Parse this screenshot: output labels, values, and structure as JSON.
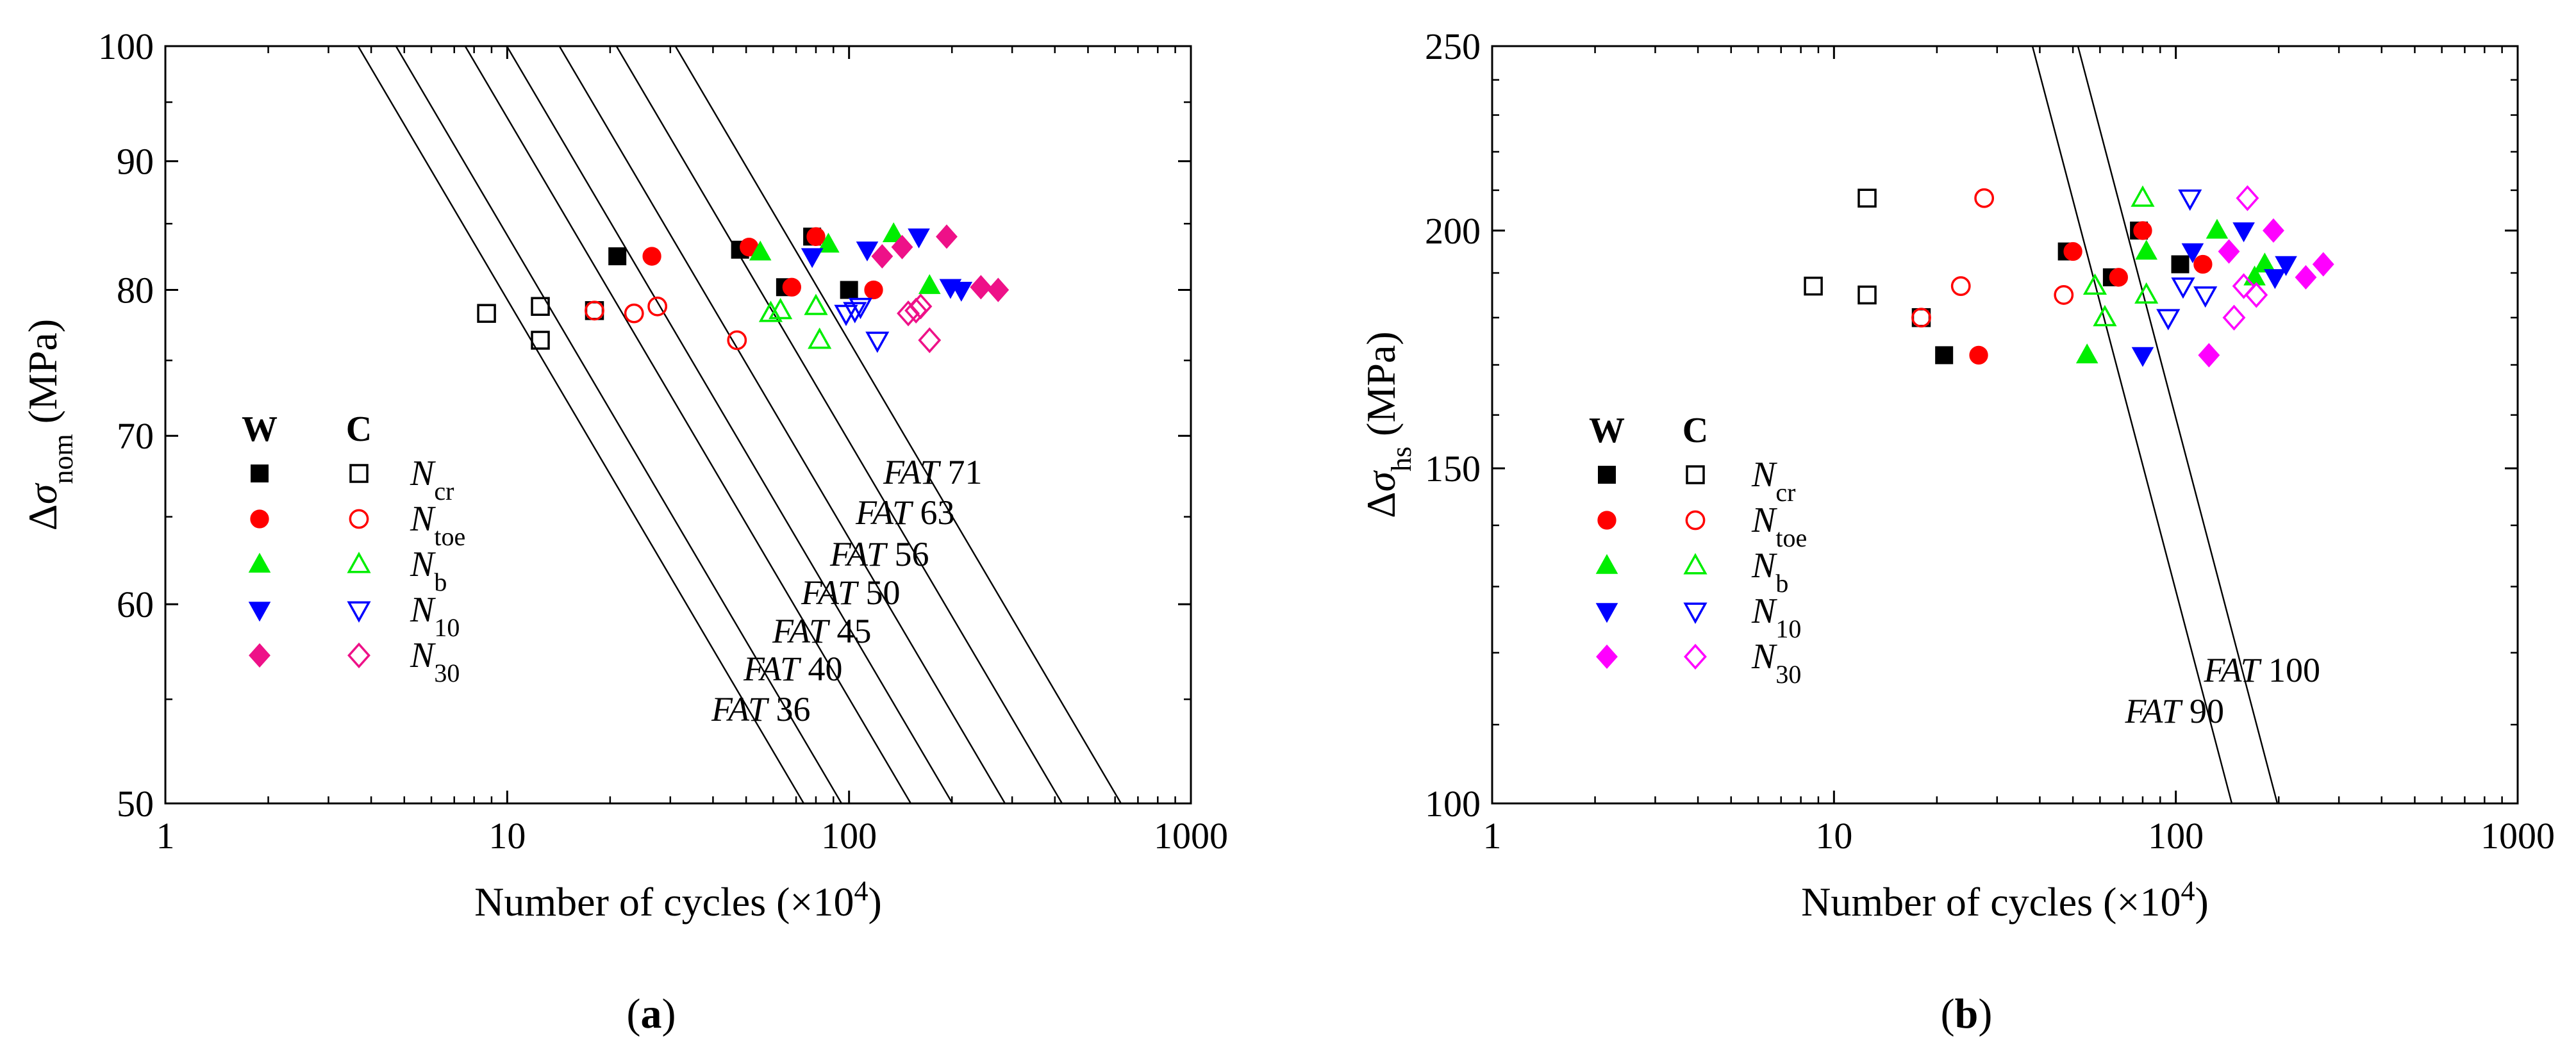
{
  "chart_data": [
    {
      "type": "scatter",
      "panel_label": "a",
      "title": "",
      "xlabel": "Number of cycles (×10",
      "xlabel_sup": "4",
      "xlabel_end": ")",
      "ylabel_prefix": "Δσ",
      "ylabel_sub": "nom",
      "ylabel_suffix": " (MPa)",
      "xscale": "log",
      "yscale": "log",
      "xlim": [
        1,
        1000
      ],
      "ylim": [
        50,
        100
      ],
      "xticks": [
        1,
        10,
        100,
        1000
      ],
      "xtick_labels": [
        "1",
        "10",
        "100",
        "1000"
      ],
      "yticks": [
        50,
        60,
        70,
        80,
        90,
        100
      ],
      "ytick_labels": [
        "50",
        "60",
        "70",
        "80",
        "90",
        "100"
      ],
      "fat_lines": [
        {
          "label_italic": "FAT",
          "label_value": "36",
          "fat": 36
        },
        {
          "label_italic": "FAT",
          "label_value": "40",
          "fat": 40
        },
        {
          "label_italic": "FAT",
          "label_value": "45",
          "fat": 45
        },
        {
          "label_italic": "FAT",
          "label_value": "50",
          "fat": 50
        },
        {
          "label_italic": "FAT",
          "label_value": "56",
          "fat": 56
        },
        {
          "label_italic": "FAT",
          "label_value": "63",
          "fat": 63
        },
        {
          "label_italic": "FAT",
          "label_value": "71",
          "fat": 71
        }
      ],
      "legend": {
        "position": "left",
        "col_headers": [
          "W",
          "C"
        ],
        "entries": [
          {
            "base": "N",
            "sub": "cr",
            "color": "#000000",
            "marker": "square"
          },
          {
            "base": "N",
            "sub": "toe",
            "color": "#ff0000",
            "marker": "circle"
          },
          {
            "base": "N",
            "sub": "b",
            "color": "#00ee00",
            "marker": "triangle-up"
          },
          {
            "base": "N",
            "sub": "10",
            "color": "#0000ff",
            "marker": "triangle-down"
          },
          {
            "base": "N",
            "sub": "30",
            "color": "#ee1188",
            "marker": "diamond"
          }
        ]
      },
      "series": [
        {
          "name": "W N_cr",
          "marker": "square",
          "filled": true,
          "color": "#000000",
          "x": [
            21,
            48,
            65,
            78,
            100
          ],
          "y": [
            82.5,
            83,
            80.2,
            84,
            80
          ]
        },
        {
          "name": "C N_cr",
          "marker": "square",
          "filled": false,
          "color": "#000000",
          "x": [
            8.7,
            12.5,
            12.5,
            18
          ],
          "y": [
            78.3,
            78.8,
            76.4,
            78.5
          ]
        },
        {
          "name": "W N_toe",
          "marker": "circle",
          "filled": true,
          "color": "#ff0000",
          "x": [
            26.5,
            51,
            68,
            80,
            118
          ],
          "y": [
            82.5,
            83.2,
            80.2,
            84,
            80
          ]
        },
        {
          "name": "C N_toe",
          "marker": "circle",
          "filled": false,
          "color": "#ff0000",
          "x": [
            18,
            23.5,
            27.5,
            47
          ],
          "y": [
            78.5,
            78.3,
            78.8,
            76.4
          ]
        },
        {
          "name": "W N_b",
          "marker": "triangle-up",
          "filled": true,
          "color": "#00ee00",
          "x": [
            55,
            87,
            135,
            172
          ],
          "y": [
            82.8,
            83.4,
            84.2,
            80.3
          ]
        },
        {
          "name": "C N_b",
          "marker": "triangle-up",
          "filled": false,
          "color": "#00ee00",
          "x": [
            59,
            63,
            80,
            82
          ],
          "y": [
            78.3,
            78.5,
            78.8,
            76.4
          ]
        },
        {
          "name": "W N_10",
          "marker": "triangle-down",
          "filled": true,
          "color": "#0000ff",
          "x": [
            78,
            113,
            160,
            198,
            213
          ],
          "y": [
            82.5,
            83,
            84,
            80.2,
            80
          ]
        },
        {
          "name": "C N_10",
          "marker": "triangle-down",
          "filled": false,
          "color": "#0000ff",
          "x": [
            98,
            104,
            108,
            121
          ],
          "y": [
            78.3,
            78.5,
            78.8,
            76.4
          ]
        },
        {
          "name": "W N_30",
          "marker": "diamond",
          "filled": true,
          "color": "#ee1188",
          "x": [
            125,
            143,
            193,
            243,
            273
          ],
          "y": [
            82.5,
            83.2,
            84,
            80.2,
            80
          ]
        },
        {
          "name": "C N_30",
          "marker": "diamond",
          "filled": false,
          "color": "#ee1188",
          "x": [
            149,
            157,
            162,
            172
          ],
          "y": [
            78.3,
            78.5,
            78.8,
            76.4
          ]
        }
      ]
    },
    {
      "type": "scatter",
      "panel_label": "b",
      "title": "",
      "xlabel": "Number of cycles (×10",
      "xlabel_sup": "4",
      "xlabel_end": ")",
      "ylabel_prefix": "Δσ",
      "ylabel_sub": "hs",
      "ylabel_suffix": " (MPa)",
      "xscale": "log",
      "yscale": "log",
      "xlim": [
        1,
        1000
      ],
      "ylim": [
        100,
        250
      ],
      "xticks": [
        1,
        10,
        100,
        1000
      ],
      "xtick_labels": [
        "1",
        "10",
        "100",
        "1000"
      ],
      "yticks": [
        100,
        150,
        200,
        250
      ],
      "ytick_labels": [
        "100",
        "150",
        "200",
        "250"
      ],
      "fat_lines": [
        {
          "label_italic": "FAT",
          "label_value": "90",
          "fat": 90
        },
        {
          "label_italic": "FAT",
          "label_value": "100",
          "fat": 100
        }
      ],
      "legend": {
        "position": "left",
        "col_headers": [
          "W",
          "C"
        ],
        "entries": [
          {
            "base": "N",
            "sub": "cr",
            "color": "#000000",
            "marker": "square"
          },
          {
            "base": "N",
            "sub": "toe",
            "color": "#ff0000",
            "marker": "circle"
          },
          {
            "base": "N",
            "sub": "b",
            "color": "#00ee00",
            "marker": "triangle-up"
          },
          {
            "base": "N",
            "sub": "10",
            "color": "#0000ff",
            "marker": "triangle-down"
          },
          {
            "base": "N",
            "sub": "30",
            "color": "#ff00ff",
            "marker": "diamond"
          }
        ]
      },
      "series": [
        {
          "name": "W N_cr",
          "marker": "square",
          "filled": true,
          "color": "#000000",
          "x": [
            21,
            48,
            65,
            78,
            103
          ],
          "y": [
            172,
            195,
            189,
            200,
            192
          ]
        },
        {
          "name": "C N_cr",
          "marker": "square",
          "filled": false,
          "color": "#000000",
          "x": [
            8.7,
            12.5,
            12.5,
            18
          ],
          "y": [
            187,
            185,
            208,
            180
          ]
        },
        {
          "name": "W N_toe",
          "marker": "circle",
          "filled": true,
          "color": "#ff0000",
          "x": [
            26.5,
            50,
            68,
            80,
            120
          ],
          "y": [
            172,
            195,
            189,
            200,
            192
          ]
        },
        {
          "name": "C N_toe",
          "marker": "circle",
          "filled": false,
          "color": "#ff0000",
          "x": [
            18,
            23.5,
            27.5,
            47
          ],
          "y": [
            180,
            187,
            208,
            185
          ]
        },
        {
          "name": "W N_b",
          "marker": "triangle-up",
          "filled": true,
          "color": "#00ee00",
          "x": [
            55,
            82,
            132,
            170,
            182
          ],
          "y": [
            172,
            195,
            200,
            189,
            192
          ]
        },
        {
          "name": "C N_b",
          "marker": "triangle-up",
          "filled": false,
          "color": "#00ee00",
          "x": [
            58,
            62,
            80,
            82
          ],
          "y": [
            187,
            180,
            208,
            185
          ]
        },
        {
          "name": "W N_10",
          "marker": "triangle-down",
          "filled": true,
          "color": "#0000ff",
          "x": [
            80,
            112,
            158,
            195,
            210
          ],
          "y": [
            172,
            195,
            200,
            189,
            192
          ]
        },
        {
          "name": "C N_10",
          "marker": "triangle-down",
          "filled": false,
          "color": "#0000ff",
          "x": [
            95,
            105,
            110,
            122
          ],
          "y": [
            180,
            187,
            208,
            185
          ]
        },
        {
          "name": "W N_30",
          "marker": "diamond",
          "filled": true,
          "color": "#ff00ff",
          "x": [
            125,
            143,
            193,
            240,
            270
          ],
          "y": [
            172,
            195,
            200,
            189,
            192
          ]
        },
        {
          "name": "C N_30",
          "marker": "diamond",
          "filled": false,
          "color": "#ff00ff",
          "x": [
            148,
            158,
            162,
            172
          ],
          "y": [
            180,
            187,
            208,
            185
          ]
        }
      ]
    }
  ]
}
